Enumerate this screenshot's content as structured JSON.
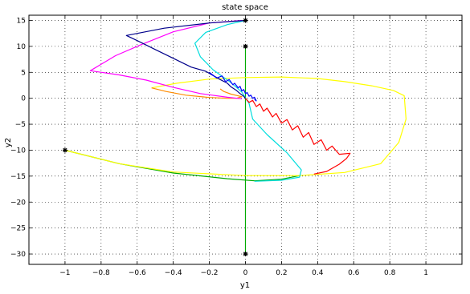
{
  "chart_data": {
    "type": "line",
    "title": "state space",
    "xlabel": "y1",
    "ylabel": "y2",
    "xlim": [
      -1.2,
      1.2
    ],
    "ylim": [
      -32,
      16
    ],
    "xticks": [
      -1,
      -0.8,
      -0.6,
      -0.4,
      -0.2,
      0,
      0.2,
      0.4,
      0.6,
      0.8,
      1
    ],
    "xtick_labels": [
      "−1",
      "−0.8",
      "−0.6",
      "−0.4",
      "−0.2",
      "0",
      "0.2",
      "0.4",
      "0.6",
      "0.8",
      "1"
    ],
    "yticks": [
      15,
      10,
      5,
      0,
      -5,
      -10,
      -15,
      -20,
      -25,
      -30
    ],
    "ytick_labels": [
      "15",
      "10",
      "5",
      "0",
      "−5",
      "−10",
      "−15",
      "−20",
      "−25",
      "−30"
    ],
    "grid": true,
    "series": [
      {
        "color": "#00aa00",
        "points": [
          [
            0,
            10
          ],
          [
            0,
            -30
          ]
        ]
      },
      {
        "color": "#00aa00",
        "points": [
          [
            -1,
            -10
          ],
          [
            -0.7,
            -12.6
          ],
          [
            -0.4,
            -14.4
          ],
          [
            -0.1,
            -15.5
          ],
          [
            0.05,
            -15.9
          ],
          [
            0.2,
            -15.6
          ],
          [
            0.3,
            -14.9
          ]
        ]
      },
      {
        "color": "#ffff00",
        "points": [
          [
            -1,
            -10
          ],
          [
            -0.7,
            -12.6
          ],
          [
            -0.4,
            -14.2
          ],
          [
            0,
            -14.9
          ],
          [
            0.3,
            -14.9
          ],
          [
            0.55,
            -14.3
          ],
          [
            0.75,
            -12.6
          ],
          [
            0.85,
            -8.5
          ],
          [
            0.89,
            -4
          ],
          [
            0.88,
            0.5
          ],
          [
            0.82,
            1.5
          ],
          [
            0.7,
            2.4
          ],
          [
            0.55,
            3.2
          ],
          [
            0.4,
            3.8
          ],
          [
            0.2,
            4.1
          ],
          [
            0,
            4
          ],
          [
            -0.2,
            3.7
          ],
          [
            -0.38,
            2.9
          ],
          [
            -0.52,
            2
          ]
        ]
      },
      {
        "color": "#ff8c00",
        "points": [
          [
            -0.52,
            2
          ],
          [
            -0.44,
            1.3
          ],
          [
            -0.33,
            0.6
          ],
          [
            -0.2,
            0.15
          ],
          [
            -0.1,
            0
          ],
          [
            -0.05,
            0
          ],
          [
            -0.02,
            0.3
          ],
          [
            -0.08,
            0.8
          ],
          [
            -0.12,
            1.3
          ],
          [
            -0.14,
            1.8
          ]
        ]
      },
      {
        "color": "#ff00ff",
        "points": [
          [
            -0.02,
            15
          ],
          [
            -0.2,
            14.5
          ],
          [
            -0.4,
            12.8
          ],
          [
            -0.58,
            10.3
          ],
          [
            -0.72,
            8.2
          ],
          [
            -0.86,
            5.3
          ],
          [
            -0.7,
            4.5
          ],
          [
            -0.55,
            3.5
          ],
          [
            -0.4,
            2.1
          ],
          [
            -0.25,
            0.9
          ],
          [
            -0.1,
            0.2
          ],
          [
            -0.02,
            -0.1
          ]
        ]
      },
      {
        "color": "#00dddd",
        "points": [
          [
            0,
            15
          ],
          [
            -0.1,
            14.2
          ],
          [
            -0.22,
            12.7
          ],
          [
            -0.28,
            10.6
          ],
          [
            -0.25,
            8
          ],
          [
            -0.18,
            5.5
          ],
          [
            -0.08,
            3
          ],
          [
            -0.02,
            1.2
          ],
          [
            0.02,
            -1
          ],
          [
            0.04,
            -4
          ],
          [
            0.12,
            -7
          ],
          [
            0.23,
            -10.5
          ],
          [
            0.31,
            -13.8
          ],
          [
            0.3,
            -15.2
          ],
          [
            0.2,
            -15.8
          ],
          [
            0.05,
            -16
          ]
        ]
      },
      {
        "color": "#00008b",
        "points": [
          [
            0,
            15
          ],
          [
            -0.2,
            14.5
          ],
          [
            -0.45,
            13.5
          ],
          [
            -0.66,
            12.1
          ],
          [
            -0.6,
            11.1
          ],
          [
            -0.5,
            9.4
          ],
          [
            -0.4,
            7.7
          ],
          [
            -0.3,
            6
          ],
          [
            -0.22,
            5.2
          ],
          [
            -0.18,
            4.4
          ],
          [
            -0.14,
            3.6
          ],
          [
            -0.1,
            2.9
          ],
          [
            -0.08,
            2.2
          ],
          [
            -0.05,
            1.5
          ],
          [
            -0.03,
            0.9
          ],
          [
            -0.01,
            0.4
          ],
          [
            0,
            0
          ]
        ]
      },
      {
        "color": "#0000ff",
        "points": [
          [
            -0.2,
            5
          ],
          [
            -0.16,
            3.9
          ],
          [
            -0.13,
            4.3
          ],
          [
            -0.11,
            3.2
          ],
          [
            -0.09,
            3.6
          ],
          [
            -0.07,
            2.6
          ],
          [
            -0.06,
            2.9
          ],
          [
            -0.04,
            2
          ],
          [
            -0.03,
            2.3
          ],
          [
            -0.02,
            1.4
          ],
          [
            -0.01,
            1.7
          ],
          [
            0,
            0.9
          ],
          [
            0.01,
            1.1
          ],
          [
            0.02,
            0.4
          ],
          [
            0.03,
            0.6
          ],
          [
            0.04,
            0
          ],
          [
            0.05,
            0.2
          ],
          [
            0.06,
            -0.5
          ],
          [
            0.05,
            -0.2
          ]
        ]
      },
      {
        "color": "#ff0000",
        "points": [
          [
            0,
            0
          ],
          [
            0.02,
            -0.8
          ],
          [
            0.04,
            -0.4
          ],
          [
            0.06,
            -1.6
          ],
          [
            0.08,
            -1.1
          ],
          [
            0.1,
            -2.5
          ],
          [
            0.12,
            -1.9
          ],
          [
            0.15,
            -3.6
          ],
          [
            0.17,
            -2.9
          ],
          [
            0.2,
            -4.8
          ],
          [
            0.23,
            -4.1
          ],
          [
            0.26,
            -6.1
          ],
          [
            0.29,
            -5.3
          ],
          [
            0.32,
            -7.5
          ],
          [
            0.35,
            -6.6
          ],
          [
            0.38,
            -8.9
          ],
          [
            0.42,
            -8
          ],
          [
            0.45,
            -10
          ],
          [
            0.48,
            -9.2
          ],
          [
            0.52,
            -10.8
          ],
          [
            0.58,
            -10.6
          ],
          [
            0.56,
            -11.6
          ],
          [
            0.52,
            -12.7
          ],
          [
            0.45,
            -14.1
          ],
          [
            0.38,
            -14.6
          ]
        ]
      }
    ],
    "markers": [
      {
        "symbol": "*",
        "points": [
          [
            0,
            15
          ],
          [
            0,
            10
          ],
          [
            0,
            -30
          ],
          [
            -1,
            -10
          ]
        ]
      }
    ]
  }
}
